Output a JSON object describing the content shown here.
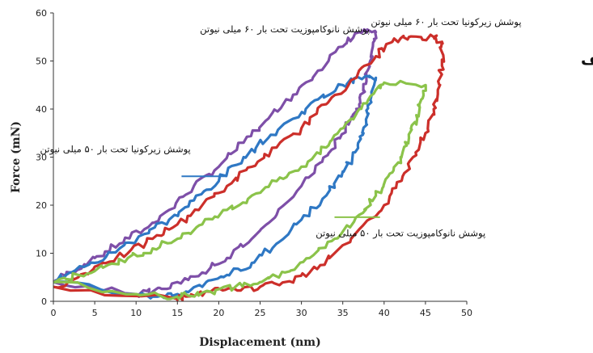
{
  "chart_data": {
    "type": "line",
    "title": "",
    "panel_label": "الف",
    "xlabel": "Displacement (nm)",
    "ylabel": "Force (mN)",
    "xlim": [
      0,
      50
    ],
    "ylim": [
      0,
      60
    ],
    "xticks": [
      0,
      5,
      10,
      15,
      20,
      25,
      30,
      35,
      40,
      45,
      50
    ],
    "yticks": [
      0,
      10,
      20,
      30,
      40,
      50,
      60
    ],
    "grid": false,
    "legend": "none",
    "series": [
      {
        "color": "#7e4fa8",
        "points": [
          [
            0,
            4
          ],
          [
            2,
            6
          ],
          [
            5,
            9
          ],
          [
            8,
            12
          ],
          [
            11,
            15
          ],
          [
            14,
            19
          ],
          [
            17,
            24
          ],
          [
            20,
            28
          ],
          [
            23,
            33
          ],
          [
            26,
            38
          ],
          [
            29,
            43
          ],
          [
            32,
            48
          ],
          [
            35,
            53
          ],
          [
            37,
            56
          ],
          [
            39,
            56
          ],
          [
            38.5,
            52
          ],
          [
            38,
            48
          ],
          [
            37.5,
            44
          ],
          [
            37,
            41
          ],
          [
            36,
            38
          ],
          [
            34.5,
            34
          ],
          [
            32.5,
            29
          ],
          [
            30,
            24
          ],
          [
            27,
            18
          ],
          [
            24,
            13
          ],
          [
            21,
            9
          ],
          [
            18,
            6
          ],
          [
            15,
            4
          ],
          [
            12,
            2
          ],
          [
            10,
            1.5
          ],
          [
            0,
            4
          ]
        ]
      },
      {
        "color": "#2f78c4",
        "points": [
          [
            0,
            4
          ],
          [
            2,
            6
          ],
          [
            5,
            8
          ],
          [
            8,
            11
          ],
          [
            11,
            14
          ],
          [
            14,
            17
          ],
          [
            17,
            21
          ],
          [
            20,
            25
          ],
          [
            23,
            30
          ],
          [
            26,
            34
          ],
          [
            29,
            38
          ],
          [
            32,
            42
          ],
          [
            35,
            45
          ],
          [
            37,
            46.5
          ],
          [
            39,
            46.5
          ],
          [
            38.5,
            43
          ],
          [
            38,
            39
          ],
          [
            37.5,
            35
          ],
          [
            36.5,
            31
          ],
          [
            35,
            27
          ],
          [
            33,
            22
          ],
          [
            30,
            17
          ],
          [
            27,
            12
          ],
          [
            24,
            8
          ],
          [
            21,
            5.5
          ],
          [
            18,
            3
          ],
          [
            15,
            1.5
          ],
          [
            12,
            1
          ],
          [
            10,
            1.5
          ],
          [
            0,
            4
          ]
        ]
      },
      {
        "color": "#cc2f2a",
        "points": [
          [
            0,
            3
          ],
          [
            3,
            5
          ],
          [
            6,
            8
          ],
          [
            9,
            10
          ],
          [
            12,
            13
          ],
          [
            15,
            16
          ],
          [
            18,
            20
          ],
          [
            21,
            24
          ],
          [
            24,
            28
          ],
          [
            27,
            32
          ],
          [
            30,
            36
          ],
          [
            33,
            41
          ],
          [
            36,
            46
          ],
          [
            39,
            51
          ],
          [
            41,
            54
          ],
          [
            43,
            55
          ],
          [
            46,
            55
          ],
          [
            47,
            54
          ],
          [
            47,
            49
          ],
          [
            46.5,
            44
          ],
          [
            46,
            40
          ],
          [
            45,
            35
          ],
          [
            43.5,
            30
          ],
          [
            42,
            25
          ],
          [
            40,
            20
          ],
          [
            37,
            15
          ],
          [
            34,
            10
          ],
          [
            31,
            6
          ],
          [
            28,
            4
          ],
          [
            25,
            3
          ],
          [
            22,
            2.5
          ],
          [
            19,
            2
          ],
          [
            16,
            1
          ],
          [
            15,
            0.5
          ],
          [
            0,
            3
          ]
        ]
      },
      {
        "color": "#8bc34a",
        "points": [
          [
            0,
            4
          ],
          [
            3,
            5.5
          ],
          [
            6,
            7
          ],
          [
            9,
            9
          ],
          [
            12,
            11
          ],
          [
            15,
            13
          ],
          [
            18,
            16
          ],
          [
            21,
            19
          ],
          [
            24,
            22
          ],
          [
            27,
            25
          ],
          [
            30,
            28
          ],
          [
            33,
            32
          ],
          [
            35,
            36
          ],
          [
            37,
            40
          ],
          [
            39,
            44
          ],
          [
            40,
            45.5
          ],
          [
            45,
            45
          ],
          [
            44.5,
            42
          ],
          [
            44,
            38
          ],
          [
            43,
            34
          ],
          [
            42,
            30
          ],
          [
            40.5,
            26
          ],
          [
            39,
            22
          ],
          [
            37,
            18
          ],
          [
            34,
            13
          ],
          [
            31,
            9
          ],
          [
            28,
            6
          ],
          [
            25,
            4
          ],
          [
            22,
            3
          ],
          [
            19,
            2
          ],
          [
            16,
            1.5
          ],
          [
            15,
            1
          ],
          [
            10,
            1.5
          ],
          [
            0,
            4
          ]
        ]
      }
    ],
    "annotations": [
      {
        "text": "پوشش نانوکامپوزیت تحت بار ۶۰ میلی نیوتن",
        "ax": 28.0,
        "ay": 56
      },
      {
        "text": "پوشش زیرکونیا تحت بار ۶۰ میلی نیوتن",
        "ax": 47.5,
        "ay": 57.5
      },
      {
        "text": "پوشش زیرکونیا تحت بار ۵۰ میلی نیوتن",
        "ax": 7.5,
        "ay": 31
      },
      {
        "text": "پوشش نانوکامپوزیت تحت بار ۵۰ میلی نیوتن",
        "ax": 42.0,
        "ay": 13.5
      }
    ],
    "pointer_lines": [
      {
        "color": "#2f78c4",
        "from": [
          15.5,
          26
        ],
        "to": [
          21,
          26
        ]
      },
      {
        "color": "#8bc34a",
        "from": [
          34,
          17.5
        ],
        "to": [
          39.5,
          17.5
        ]
      }
    ]
  }
}
